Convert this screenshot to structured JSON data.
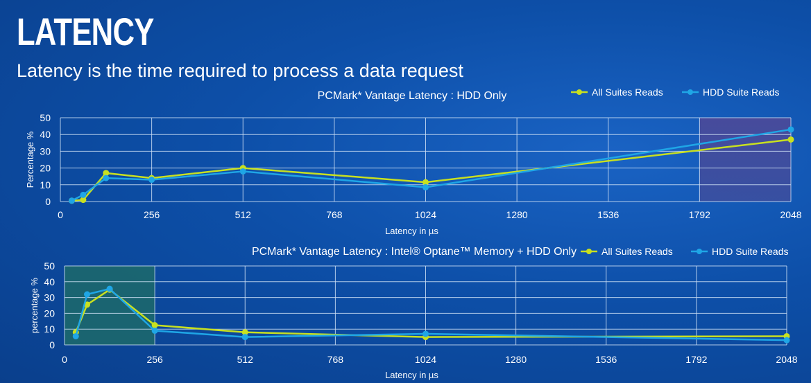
{
  "title": "LATENCY",
  "subtitle": "Latency is the time required to process a data request",
  "colors": {
    "all_suites": "#c8e020",
    "hdd_suite": "#1fa6e6",
    "grid": "#cfe0f5",
    "highlight_top": "#4a4a9a",
    "highlight_bottom": "#1d6a6a"
  },
  "chart_data": [
    {
      "type": "line",
      "title": "PCMark* Vantage Latency : HDD Only",
      "xlabel": "Latency in µs",
      "ylabel": "Percentage %",
      "xlim": [
        0,
        2048
      ],
      "ylim": [
        0,
        50
      ],
      "x_ticks": [
        "0",
        "256",
        "512",
        "768",
        "1024",
        "1280",
        "1536",
        "1792",
        "2048"
      ],
      "y_ticks": [
        "0",
        "10",
        "20",
        "30",
        "40",
        "50"
      ],
      "highlight_x": [
        1792,
        2048
      ],
      "legend_position": "top-right",
      "series": [
        {
          "name": "All Suites Reads",
          "x": [
            32,
            64,
            128,
            256,
            512,
            1024,
            2048
          ],
          "y": [
            0.5,
            1,
            17,
            14,
            20,
            11.5,
            37
          ]
        },
        {
          "name": "HDD Suite Reads",
          "x": [
            32,
            64,
            128,
            256,
            512,
            1024,
            2048
          ],
          "y": [
            0.5,
            4,
            14,
            13,
            18,
            8.5,
            43
          ]
        }
      ]
    },
    {
      "type": "line",
      "title": "PCMark* Vantage Latency : Intel® Optane™ Memory + HDD Only",
      "xlabel": "Latency in  µs",
      "ylabel": "percentage %",
      "xlim": [
        0,
        2048
      ],
      "ylim": [
        0,
        50
      ],
      "x_ticks": [
        "0",
        "256",
        "512",
        "768",
        "1024",
        "1280",
        "1536",
        "1792",
        "2048"
      ],
      "y_ticks": [
        "0",
        "10",
        "20",
        "30",
        "40",
        "50"
      ],
      "highlight_x": [
        0,
        256
      ],
      "legend_position": "top-right",
      "series": [
        {
          "name": "All Suites Reads",
          "x": [
            32,
            64,
            128,
            256,
            512,
            1024,
            2048
          ],
          "y": [
            8,
            25.5,
            35,
            12.5,
            8,
            5,
            5.5
          ]
        },
        {
          "name": "HDD Suite Reads",
          "x": [
            32,
            64,
            128,
            256,
            512,
            1024,
            2048
          ],
          "y": [
            5.5,
            32,
            35.5,
            9,
            5,
            7,
            3
          ]
        }
      ]
    }
  ]
}
